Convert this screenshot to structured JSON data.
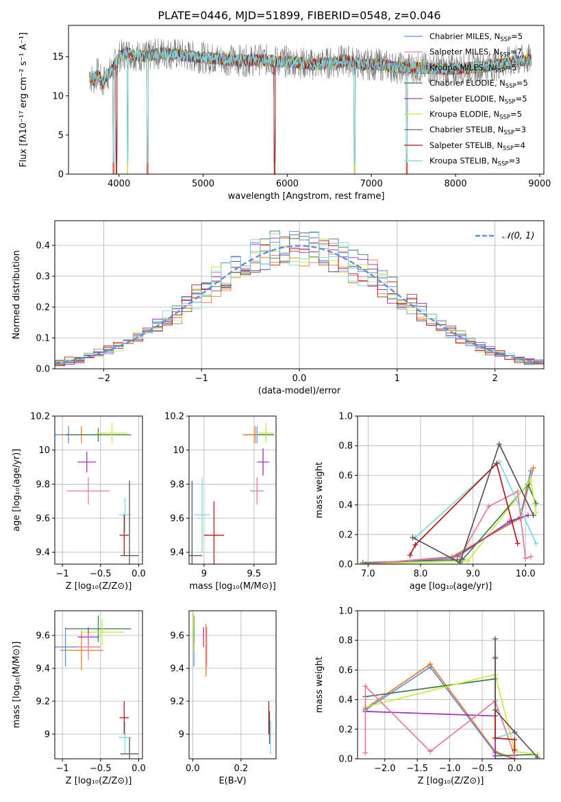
{
  "figure": {
    "title": "PLATE=0446, MJD=51899, FIBERID=0548, z=0.046"
  },
  "chart_data": [
    {
      "id": "spectrum",
      "type": "line",
      "xlabel": "wavelength [Angstrom, rest frame]",
      "ylabel": "Flux [fλ10⁻¹⁷ erg cm⁻² s⁻¹ A⁻¹]",
      "xlim": [
        3400,
        9050
      ],
      "ylim": [
        0,
        19
      ],
      "xticks": [
        4000,
        5000,
        6000,
        7000,
        8000,
        9000
      ],
      "yticks": [
        0,
        5,
        10,
        15
      ],
      "grid": false,
      "legend_position": "top-right",
      "data_curve": {
        "x": [
          3650,
          3700,
          3750,
          3800,
          3850,
          3900,
          3950,
          4000,
          4100,
          4200,
          4300,
          4400,
          4500,
          4700,
          4900,
          5100,
          5300,
          5500,
          5700,
          5900,
          6100,
          6300,
          6500,
          6700,
          6900,
          7100,
          7300,
          7500,
          7700,
          7900,
          8100,
          8300,
          8500,
          8700,
          8900
        ],
        "y": [
          12.5,
          12.0,
          13.0,
          11.5,
          12.5,
          13.0,
          14.0,
          15.0,
          15.5,
          15.2,
          15.0,
          15.2,
          15.5,
          15.3,
          15.0,
          14.8,
          14.6,
          14.5,
          14.6,
          14.4,
          14.3,
          14.0,
          14.2,
          14.5,
          14.0,
          14.0,
          13.6,
          13.6,
          13.5,
          13.4,
          13.5,
          13.7,
          14.0,
          14.4,
          14.6
        ]
      },
      "absorption_dips": [
        3935,
        3970,
        4102,
        4340,
        5850,
        6800,
        7420
      ],
      "series": [
        {
          "name": "Chabrier MILES, N",
          "sub": "SSP",
          "suffix": "=5",
          "color": "#5a8ee5"
        },
        {
          "name": "Salpeter MILES, N",
          "sub": "SSP",
          "suffix": "=7",
          "color": "#e8789a"
        },
        {
          "name": "Kroupa MILES, N",
          "sub": "SSP",
          "suffix": "=5",
          "color": "#d4a82a"
        },
        {
          "name": "Chabrier ELODIE, N",
          "sub": "SSP",
          "suffix": "=5",
          "color": "#3a7a50"
        },
        {
          "name": "Salpeter ELODIE, N",
          "sub": "SSP",
          "suffix": "=5",
          "color": "#9b2fb5"
        },
        {
          "name": "Kroupa ELODIE, N",
          "sub": "SSP",
          "suffix": "=5",
          "color": "#c8ec3a"
        },
        {
          "name": "Chabrier STELIB, N",
          "sub": "SSP",
          "suffix": "=3",
          "color": "#555555"
        },
        {
          "name": "Salpeter STELIB, N",
          "sub": "SSP",
          "suffix": "=4",
          "color": "#b01515"
        },
        {
          "name": "Kroupa STELIB, N",
          "sub": "SSP",
          "suffix": "=3",
          "color": "#7ad8e0"
        }
      ]
    },
    {
      "id": "residuals",
      "type": "bar",
      "xlabel": "(data-model)/error",
      "ylabel": "Normed distribution",
      "xlim": [
        -2.5,
        2.5
      ],
      "ylim": [
        0,
        0.48
      ],
      "xticks": [
        -2,
        -1,
        0,
        1,
        2
      ],
      "yticks": [
        0.0,
        0.1,
        0.2,
        0.3,
        0.4
      ],
      "grid": true,
      "bin_width": 0.1,
      "legend": {
        "label": "𝒩(0, 1)",
        "color": "#5a8ee5",
        "position": "top-right"
      }
    },
    {
      "id": "age-vs-Z",
      "type": "scatter",
      "xlabel": "Z [log₁₀(Z/Z⊙)]",
      "ylabel": "age  [log₁₀(age/yr)]",
      "xlim": [
        -1.1,
        0.05
      ],
      "ylim": [
        9.33,
        10.2
      ],
      "xticks": [
        -1.0,
        -0.5,
        0.0
      ],
      "yticks": [
        9.4,
        9.6,
        9.8,
        10.0,
        10.2
      ],
      "grid": true,
      "points": [
        {
          "x": -0.92,
          "y": 10.09,
          "ex": 0.18,
          "ey": 0.05,
          "color": "#5a8ee5"
        },
        {
          "x": -0.75,
          "y": 10.09,
          "ex": 0.28,
          "ey": 0.05,
          "color": "#e87a1e"
        },
        {
          "x": -0.53,
          "y": 10.09,
          "ex": 0.43,
          "ey": 0.04,
          "color": "#3a7a50"
        },
        {
          "x": -0.35,
          "y": 10.1,
          "ex": 0.2,
          "ey": 0.06,
          "color": "#c8ec3a"
        },
        {
          "x": -0.68,
          "y": 9.93,
          "ex": 0.12,
          "ey": 0.06,
          "color": "#9b2fb5"
        },
        {
          "x": -0.66,
          "y": 9.76,
          "ex": 0.28,
          "ey": 0.08,
          "color": "#e8789a"
        },
        {
          "x": -0.18,
          "y": 9.62,
          "ex": 0.08,
          "ey": 0.1,
          "color": "#7ad8e0"
        },
        {
          "x": -0.19,
          "y": 9.5,
          "ex": 0.06,
          "ey": 0.12,
          "color": "#b01515"
        },
        {
          "x": -0.12,
          "y": 9.38,
          "ex": 0.12,
          "ey": 0.44,
          "color": "#555555"
        }
      ]
    },
    {
      "id": "age-vs-mass",
      "type": "scatter",
      "xlabel": "mass [log₁₀(M/M⊙)]",
      "ylabel": "",
      "xlim": [
        8.85,
        9.72
      ],
      "ylim": [
        9.33,
        10.2
      ],
      "xticks": [
        9.0,
        9.5
      ],
      "yticks": [
        9.4,
        9.6,
        9.8,
        10.0,
        10.2
      ],
      "grid": true,
      "points": [
        {
          "x": 9.53,
          "y": 10.09,
          "ex": 0.12,
          "ey": 0.05,
          "color": "#5a8ee5"
        },
        {
          "x": 9.51,
          "y": 10.09,
          "ex": 0.12,
          "ey": 0.05,
          "color": "#e87a1e"
        },
        {
          "x": 9.62,
          "y": 10.09,
          "ex": 0.08,
          "ey": 0.04,
          "color": "#3a7a50"
        },
        {
          "x": 9.62,
          "y": 10.1,
          "ex": 0.08,
          "ey": 0.06,
          "color": "#c8ec3a"
        },
        {
          "x": 9.59,
          "y": 9.93,
          "ex": 0.06,
          "ey": 0.08,
          "color": "#9b2fb5"
        },
        {
          "x": 9.53,
          "y": 9.76,
          "ex": 0.07,
          "ey": 0.08,
          "color": "#e8789a"
        },
        {
          "x": 8.98,
          "y": 9.62,
          "ex": 0.08,
          "ey": 0.22,
          "color": "#7ad8e0"
        },
        {
          "x": 9.1,
          "y": 9.5,
          "ex": 0.1,
          "ey": 0.2,
          "color": "#b01515"
        },
        {
          "x": 8.88,
          "y": 9.38,
          "ex": 0.1,
          "ey": 0.44,
          "color": "#555555"
        }
      ]
    },
    {
      "id": "weight-vs-age",
      "type": "line",
      "xlabel": "age  [log₁₀(age/yr)]",
      "ylabel": "mass weight",
      "xlim": [
        6.8,
        10.35
      ],
      "ylim": [
        0.0,
        1.0
      ],
      "xticks": [
        7,
        8,
        9,
        10
      ],
      "yticks": [
        0.0,
        0.2,
        0.4,
        0.6,
        0.8,
        1.0
      ],
      "grid": true,
      "series": [
        {
          "color": "#5a8ee5",
          "x": [
            6.95,
            8.6,
            9.9,
            10.1
          ],
          "y": [
            0.0,
            0.04,
            0.32,
            0.63
          ]
        },
        {
          "color": "#e87a1e",
          "x": [
            6.95,
            8.6,
            9.9,
            10.15
          ],
          "y": [
            0.0,
            0.05,
            0.31,
            0.65
          ]
        },
        {
          "color": "#3a7a50",
          "x": [
            6.9,
            8.8,
            10.05,
            10.2
          ],
          "y": [
            0.01,
            0.03,
            0.54,
            0.41
          ]
        },
        {
          "color": "#c8ec3a",
          "x": [
            6.85,
            8.9,
            10.1,
            10.2
          ],
          "y": [
            0.0,
            0.02,
            0.57,
            0.35
          ]
        },
        {
          "color": "#9b2fb5",
          "x": [
            6.9,
            8.7,
            9.7,
            10.05
          ],
          "y": [
            0.0,
            0.05,
            0.29,
            0.33
          ]
        },
        {
          "color": "#e8789a",
          "x": [
            6.9,
            8.75,
            9.3,
            9.85,
            10.0,
            10.1
          ],
          "y": [
            0.0,
            0.05,
            0.39,
            0.49,
            0.04,
            0.05
          ]
        },
        {
          "color": "#7ad8e0",
          "x": [
            7.9,
            9.5,
            10.2
          ],
          "y": [
            0.18,
            0.69,
            0.14
          ]
        },
        {
          "color": "#b01515",
          "x": [
            7.8,
            7.9,
            9.45,
            9.85
          ],
          "y": [
            0.06,
            0.13,
            0.68,
            0.14
          ]
        },
        {
          "color": "#555555",
          "x": [
            7.85,
            8.75,
            9.5,
            10.15
          ],
          "y": [
            0.18,
            0.01,
            0.81,
            0.33
          ]
        }
      ]
    },
    {
      "id": "mass-vs-Z",
      "type": "scatter",
      "xlabel": "Z [log₁₀(Z/Z⊙)]",
      "ylabel": "mass [log₁₀(M/M⊙)]",
      "xlim": [
        -1.1,
        0.05
      ],
      "ylim": [
        8.85,
        9.75
      ],
      "xticks": [
        -1.0,
        -0.5,
        0.0
      ],
      "yticks": [
        9.0,
        9.2,
        9.4,
        9.6
      ],
      "grid": true,
      "points": [
        {
          "x": -0.96,
          "y": 9.53,
          "ex": 0.18,
          "ey": 0.12,
          "color": "#5a8ee5"
        },
        {
          "x": -0.75,
          "y": 9.51,
          "ex": 0.28,
          "ey": 0.12,
          "color": "#e87a1e"
        },
        {
          "x": -0.53,
          "y": 9.64,
          "ex": 0.43,
          "ey": 0.08,
          "color": "#3a7a50"
        },
        {
          "x": -0.48,
          "y": 9.62,
          "ex": 0.28,
          "ey": 0.08,
          "color": "#c8ec3a"
        },
        {
          "x": -0.66,
          "y": 9.59,
          "ex": 0.14,
          "ey": 0.06,
          "color": "#9b2fb5"
        },
        {
          "x": -0.66,
          "y": 9.53,
          "ex": 0.16,
          "ey": 0.08,
          "color": "#e8789a"
        },
        {
          "x": -0.18,
          "y": 8.98,
          "ex": 0.08,
          "ey": 0.1,
          "color": "#7ad8e0"
        },
        {
          "x": -0.19,
          "y": 9.1,
          "ex": 0.06,
          "ey": 0.1,
          "color": "#b01515"
        },
        {
          "x": -0.12,
          "y": 8.88,
          "ex": 0.12,
          "ey": 0.1,
          "color": "#555555"
        }
      ]
    },
    {
      "id": "mass-vs-ebv",
      "type": "scatter",
      "xlabel": "E(B-V)",
      "ylabel": "",
      "xlim": [
        -0.015,
        0.345
      ],
      "ylim": [
        8.85,
        9.75
      ],
      "xticks": [
        0.0,
        0.2
      ],
      "yticks": [
        9.0,
        9.2,
        9.4,
        9.6
      ],
      "grid": true,
      "points": [
        {
          "x": 0.005,
          "y": 9.53,
          "ex": 0.0,
          "ey": 0.12,
          "color": "#5a8ee5"
        },
        {
          "x": 0.055,
          "y": 9.51,
          "ex": 0.0,
          "ey": 0.16,
          "color": "#e87a1e"
        },
        {
          "x": 0.005,
          "y": 9.64,
          "ex": 0.0,
          "ey": 0.08,
          "color": "#3a7a50"
        },
        {
          "x": 0.003,
          "y": 9.62,
          "ex": 0.0,
          "ey": 0.12,
          "color": "#c8ec3a"
        },
        {
          "x": 0.045,
          "y": 9.59,
          "ex": 0.0,
          "ey": 0.06,
          "color": "#9b2fb5"
        },
        {
          "x": 0.058,
          "y": 9.53,
          "ex": 0.0,
          "ey": 0.12,
          "color": "#e8789a"
        },
        {
          "x": 0.322,
          "y": 8.98,
          "ex": 0.0,
          "ey": 0.1,
          "color": "#7ad8e0"
        },
        {
          "x": 0.315,
          "y": 9.1,
          "ex": 0.0,
          "ey": 0.1,
          "color": "#b01515"
        },
        {
          "x": 0.318,
          "y": 9.04,
          "ex": 0.0,
          "ey": 0.1,
          "color": "#555555"
        }
      ]
    },
    {
      "id": "weight-vs-Z",
      "type": "line",
      "xlabel": "Z [log₁₀(Z/Z⊙)]",
      "ylabel": "mass weight",
      "xlim": [
        -2.42,
        0.45
      ],
      "ylim": [
        0.0,
        1.0
      ],
      "xticks": [
        -2.0,
        -1.5,
        -1.0,
        -0.5,
        0.0
      ],
      "yticks": [
        0.0,
        0.2,
        0.4,
        0.6,
        0.8,
        1.0
      ],
      "grid": true,
      "series": [
        {
          "color": "#5a8ee5",
          "x": [
            -2.3,
            -1.3,
            -0.3,
            0.0
          ],
          "y": [
            0.33,
            0.62,
            0.04,
            0.0
          ]
        },
        {
          "color": "#e87a1e",
          "x": [
            -2.3,
            -1.3,
            -0.3,
            0.0
          ],
          "y": [
            0.34,
            0.64,
            0.05,
            0.0
          ]
        },
        {
          "color": "#3a7a50",
          "x": [
            -2.3,
            -0.3,
            -0.3,
            0.35
          ],
          "y": [
            0.42,
            0.54,
            0.02,
            0.03
          ]
        },
        {
          "color": "#c8ec3a",
          "x": [
            -2.3,
            -0.3,
            0.0,
            0.35
          ],
          "y": [
            0.35,
            0.57,
            0.05,
            0.03
          ]
        },
        {
          "color": "#9b2fb5",
          "x": [
            -2.3,
            -0.3,
            -0.3,
            0.0
          ],
          "y": [
            0.32,
            0.29,
            0.0,
            0.0
          ]
        },
        {
          "color": "#e8789a",
          "x": [
            -2.3,
            -2.3,
            -1.3,
            -0.3,
            0.0
          ],
          "y": [
            0.04,
            0.49,
            0.05,
            0.39,
            0.02
          ]
        },
        {
          "color": "#7ad8e0",
          "x": [
            -0.3,
            -0.3,
            0.0
          ],
          "y": [
            0.69,
            0.14,
            0.18
          ]
        },
        {
          "color": "#b01515",
          "x": [
            -0.3,
            -0.3,
            0.0,
            0.0
          ],
          "y": [
            0.68,
            0.14,
            0.13,
            0.06
          ]
        },
        {
          "color": "#555555",
          "x": [
            -0.3,
            -0.3,
            0.0,
            0.35
          ],
          "y": [
            0.81,
            0.33,
            0.18,
            0.01
          ]
        }
      ]
    }
  ]
}
